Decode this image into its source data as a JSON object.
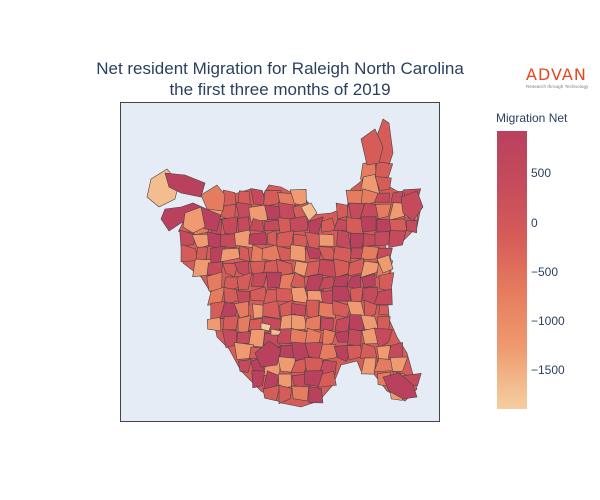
{
  "title": {
    "line1": "Net resident Migration for Raleigh North Carolina",
    "line2": "the first three months of 2019"
  },
  "logo": {
    "word": "ADVAN",
    "tagline": "Research through Technology"
  },
  "colorbar": {
    "title": "Migration Net",
    "ticks": [
      "500",
      "0",
      "−500",
      "−1000",
      "−1500"
    ],
    "range": [
      -1850,
      950
    ]
  },
  "colors": {
    "map_background": "#e5ecf6",
    "region_border": "#444444",
    "scale": [
      "#b9415e",
      "#c54a5c",
      "#d55c58",
      "#e67c5f",
      "#ef9a70",
      "#f3bd8f",
      "#f5cd9f"
    ]
  }
}
